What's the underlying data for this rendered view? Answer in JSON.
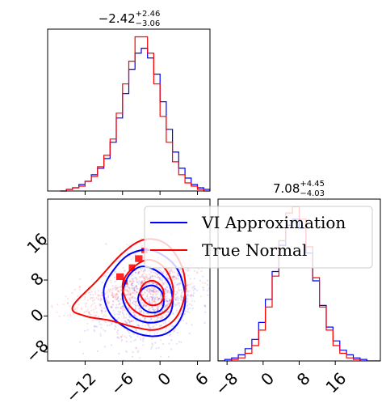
{
  "chart_data": {
    "type": "corner",
    "legend": {
      "placement": "upper-right",
      "entries": [
        {
          "label": "VI Approximation",
          "color": "#0000ff"
        },
        {
          "label": "True Normal",
          "color": "#ff0000"
        }
      ]
    },
    "marginal_x": {
      "title_main": "−2.42",
      "title_plus": "+2.46",
      "title_minus": "−3.06",
      "xlim": [
        -18,
        8
      ],
      "bin_edges": [
        -16,
        -15,
        -14,
        -13,
        -12,
        -11,
        -10,
        -9,
        -8,
        -7,
        -6,
        -5,
        -4,
        -3,
        -2,
        -1,
        0,
        1,
        2,
        3,
        4,
        5,
        6,
        7,
        8
      ],
      "series": [
        {
          "name": "VI Approximation",
          "color": "#0000ff",
          "counts": [
            0,
            1,
            2,
            4,
            6,
            10,
            14,
            20,
            30,
            45,
            60,
            75,
            85,
            88,
            82,
            72,
            55,
            38,
            24,
            14,
            8,
            4,
            2,
            1
          ]
        },
        {
          "name": "True Normal",
          "color": "#ff0000",
          "counts": [
            0,
            1,
            2,
            3,
            6,
            9,
            15,
            22,
            32,
            48,
            66,
            80,
            95,
            95,
            85,
            66,
            46,
            30,
            18,
            10,
            5,
            3,
            1,
            0
          ]
        }
      ]
    },
    "marginal_y": {
      "title_main": "7.08",
      "title_plus": "+4.45",
      "title_minus": "−4.03",
      "xlim": [
        -10,
        26
      ],
      "xticks": [
        -8,
        0,
        8,
        16
      ],
      "bin_edges": [
        -10,
        -8.5,
        -7,
        -5.5,
        -4,
        -2.5,
        -1,
        0.5,
        2,
        3.5,
        5,
        6.5,
        8,
        9.5,
        11,
        12.5,
        14,
        15.5,
        17,
        18.5,
        20,
        21.5,
        23,
        24.5,
        26
      ],
      "series": [
        {
          "name": "VI Approximation",
          "color": "#0000ff",
          "counts": [
            0,
            1,
            2,
            4,
            8,
            14,
            25,
            40,
            58,
            75,
            88,
            92,
            86,
            70,
            52,
            36,
            22,
            13,
            7,
            4,
            2,
            1,
            0,
            0
          ]
        },
        {
          "name": "True Normal",
          "color": "#ff0000",
          "counts": [
            0,
            0,
            1,
            2,
            5,
            10,
            20,
            35,
            55,
            78,
            96,
            100,
            92,
            74,
            54,
            35,
            20,
            10,
            5,
            2,
            1,
            0,
            0,
            0
          ]
        }
      ]
    },
    "joint": {
      "xlim": [
        -18,
        8
      ],
      "ylim": [
        -10,
        26
      ],
      "xticks": [
        -12,
        -6,
        0,
        6
      ],
      "yticks": [
        -8,
        0,
        8,
        16
      ],
      "scatter": [
        {
          "name": "VI Approximation",
          "color": "#0000ff",
          "center": [
            -1.5,
            4
          ],
          "spread": [
            4.0,
            5.0
          ],
          "n": 700,
          "seed": 11
        },
        {
          "name": "True Normal",
          "color": "#ff0000",
          "center": [
            -1.5,
            5
          ],
          "spread": [
            3.6,
            4.6
          ],
          "n": 700,
          "seed": 23
        },
        {
          "name": "True Normal",
          "color": "#ff0000",
          "center": [
            -9,
            4
          ],
          "spread": [
            3.5,
            2.0
          ],
          "n": 200,
          "seed": 37
        }
      ],
      "contours": [
        {
          "name": "VI Approximation",
          "color": "#0000ff",
          "curves": [
            [
              [
                -3.5,
                4
              ],
              [
                -2.8,
                6
              ],
              [
                -1.2,
                6.8
              ],
              [
                0.2,
                5.5
              ],
              [
                0.6,
                3
              ],
              [
                0,
                1.2
              ],
              [
                -1.6,
                0.8
              ],
              [
                -3,
                2
              ]
            ],
            [
              [
                -6,
                5
              ],
              [
                -5,
                9
              ],
              [
                -3,
                11
              ],
              [
                -0.5,
                10
              ],
              [
                1.5,
                7
              ],
              [
                2,
                2.5
              ],
              [
                1,
                -0.5
              ],
              [
                -1.5,
                -1.5
              ],
              [
                -4,
                -0.5
              ],
              [
                -5.5,
                2
              ]
            ],
            [
              [
                -9,
                6
              ],
              [
                -7,
                11
              ],
              [
                -4.5,
                14
              ],
              [
                -1,
                14.5
              ],
              [
                2.5,
                11
              ],
              [
                4,
                5
              ],
              [
                3.5,
                0
              ],
              [
                1.5,
                -3.5
              ],
              [
                -1.5,
                -4.5
              ],
              [
                -5,
                -3
              ],
              [
                -8,
                0.5
              ]
            ]
          ]
        },
        {
          "name": "True Normal",
          "color": "#ff0000",
          "curves": [
            [
              [
                -3.2,
                5
              ],
              [
                -2.5,
                7.2
              ],
              [
                -1,
                7.8
              ],
              [
                0.4,
                6.2
              ],
              [
                0.5,
                3.8
              ],
              [
                -0.5,
                2.5
              ],
              [
                -2,
                2.7
              ]
            ],
            [
              [
                -6,
                7
              ],
              [
                -4.5,
                10.5
              ],
              [
                -2,
                12.5
              ],
              [
                0.5,
                11
              ],
              [
                2,
                7
              ],
              [
                1.8,
                3
              ],
              [
                0.2,
                0.5
              ],
              [
                -2.5,
                0
              ],
              [
                -5,
                2.5
              ]
            ],
            [
              [
                -14,
                2
              ],
              [
                -10,
                8
              ],
              [
                -6,
                14
              ],
              [
                -2.5,
                17
              ],
              [
                1,
                16
              ],
              [
                3.5,
                11
              ],
              [
                4,
                5
              ],
              [
                2.5,
                -0.5
              ],
              [
                -0.5,
                -3
              ],
              [
                -4,
                -2.5
              ],
              [
                -8,
                -1
              ],
              [
                -12,
                0
              ]
            ]
          ]
        }
      ],
      "density_squares": [
        {
          "color": "#ff0000",
          "x": -5,
          "y": 10,
          "w": 1,
          "h": 1.5
        },
        {
          "color": "#ff0000",
          "x": -4,
          "y": 12,
          "w": 1.2,
          "h": 1.5
        },
        {
          "color": "#ff0000",
          "x": -7,
          "y": 8,
          "w": 1.2,
          "h": 1.5
        },
        {
          "color": "#ff0000",
          "x": -3,
          "y": 14,
          "w": 1,
          "h": 1.2
        },
        {
          "color": "#ff0000",
          "x": -6,
          "y": 7,
          "w": 0.8,
          "h": 1
        }
      ]
    }
  }
}
